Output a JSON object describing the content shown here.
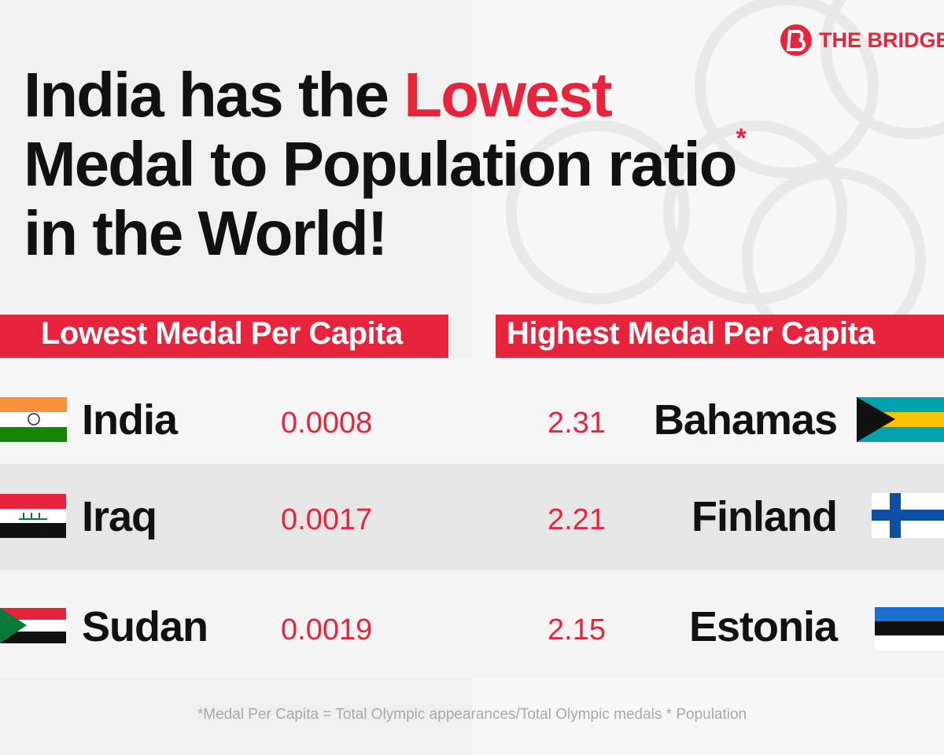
{
  "brand": "THE BRIDGE",
  "title": {
    "line1": "India has the ",
    "highlight": "Lowest",
    "line2": "Medal to Population ratio",
    "asterisk": "*",
    "line3": "in the World!"
  },
  "lowest": {
    "header": "Lowest Medal Per Capita",
    "rows": [
      {
        "country": "India",
        "value": "0.0008"
      },
      {
        "country": "Iraq",
        "value": "0.0017"
      },
      {
        "country": "Sudan",
        "value": "0.0019"
      }
    ]
  },
  "highest": {
    "header": "Highest Medal Per Capita",
    "rows": [
      {
        "country": "Bahamas",
        "value": "2.31"
      },
      {
        "country": "Finland",
        "value": "2.21"
      },
      {
        "country": "Estonia",
        "value": "2.15"
      }
    ]
  },
  "footnote": "*Medal Per Capita = Total Olympic appearances/Total Olympic medals * Population"
}
